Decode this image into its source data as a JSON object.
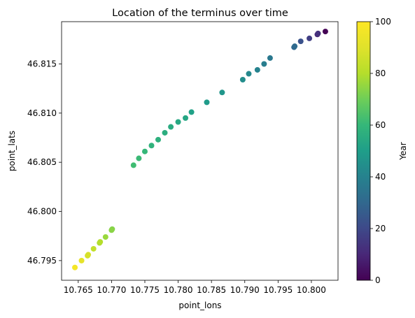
{
  "chart_data": {
    "type": "scatter",
    "title": "Location of the terminus over time",
    "xlabel": "point_lons",
    "ylabel": "point_lats",
    "xlim": [
      10.7625,
      10.804
    ],
    "ylim": [
      46.793,
      46.8193
    ],
    "xticks": [
      10.765,
      10.77,
      10.775,
      10.78,
      10.785,
      10.79,
      10.795,
      10.8
    ],
    "xtick_labels": [
      "10.765",
      "10.770",
      "10.775",
      "10.780",
      "10.785",
      "10.790",
      "10.795",
      "10.800"
    ],
    "yticks": [
      46.795,
      46.8,
      46.805,
      46.81,
      46.815
    ],
    "ytick_labels": [
      "46.795",
      "46.800",
      "46.805",
      "46.810",
      "46.815"
    ],
    "grid": false,
    "colormap": "viridis",
    "colorbar": {
      "label": "Year",
      "range": [
        0,
        100
      ],
      "ticks": [
        0,
        20,
        40,
        60,
        80,
        100
      ],
      "tick_labels": [
        "0",
        "20",
        "40",
        "60",
        "80",
        "100"
      ]
    },
    "points": [
      {
        "x": 10.8021,
        "y": 46.8183,
        "year": 0
      },
      {
        "x": 10.8009,
        "y": 46.818,
        "year": 10
      },
      {
        "x": 10.801,
        "y": 46.8181,
        "year": 13
      },
      {
        "x": 10.7997,
        "y": 46.8176,
        "year": 17
      },
      {
        "x": 10.7984,
        "y": 46.8173,
        "year": 23
      },
      {
        "x": 10.7974,
        "y": 46.8167,
        "year": 30
      },
      {
        "x": 10.7975,
        "y": 46.8168,
        "year": 31
      },
      {
        "x": 10.7938,
        "y": 46.8156,
        "year": 36
      },
      {
        "x": 10.7929,
        "y": 46.815,
        "year": 38
      },
      {
        "x": 10.7919,
        "y": 46.8144,
        "year": 40
      },
      {
        "x": 10.7906,
        "y": 46.814,
        "year": 42
      },
      {
        "x": 10.7897,
        "y": 46.8134,
        "year": 44
      },
      {
        "x": 10.7866,
        "y": 46.8121,
        "year": 47
      },
      {
        "x": 10.7843,
        "y": 46.8111,
        "year": 49
      },
      {
        "x": 10.782,
        "y": 46.8101,
        "year": 51
      },
      {
        "x": 10.7811,
        "y": 46.8095,
        "year": 53
      },
      {
        "x": 10.78,
        "y": 46.8091,
        "year": 54
      },
      {
        "x": 10.7789,
        "y": 46.8086,
        "year": 55
      },
      {
        "x": 10.778,
        "y": 46.808,
        "year": 56
      },
      {
        "x": 10.777,
        "y": 46.8073,
        "year": 57
      },
      {
        "x": 10.776,
        "y": 46.8067,
        "year": 58
      },
      {
        "x": 10.775,
        "y": 46.8061,
        "year": 60
      },
      {
        "x": 10.7741,
        "y": 46.8054,
        "year": 61
      },
      {
        "x": 10.7733,
        "y": 46.8047,
        "year": 62
      },
      {
        "x": 10.7701,
        "y": 46.7982,
        "year": 73
      },
      {
        "x": 10.77,
        "y": 46.7981,
        "year": 74
      },
      {
        "x": 10.7691,
        "y": 46.7974,
        "year": 76
      },
      {
        "x": 10.7682,
        "y": 46.7968,
        "year": 79
      },
      {
        "x": 10.7683,
        "y": 46.7969,
        "year": 80
      },
      {
        "x": 10.7673,
        "y": 46.7962,
        "year": 83
      },
      {
        "x": 10.7664,
        "y": 46.7955,
        "year": 87
      },
      {
        "x": 10.7665,
        "y": 46.7956,
        "year": 88
      },
      {
        "x": 10.7655,
        "y": 46.795,
        "year": 92
      },
      {
        "x": 10.7645,
        "y": 46.7943,
        "year": 97
      }
    ]
  }
}
